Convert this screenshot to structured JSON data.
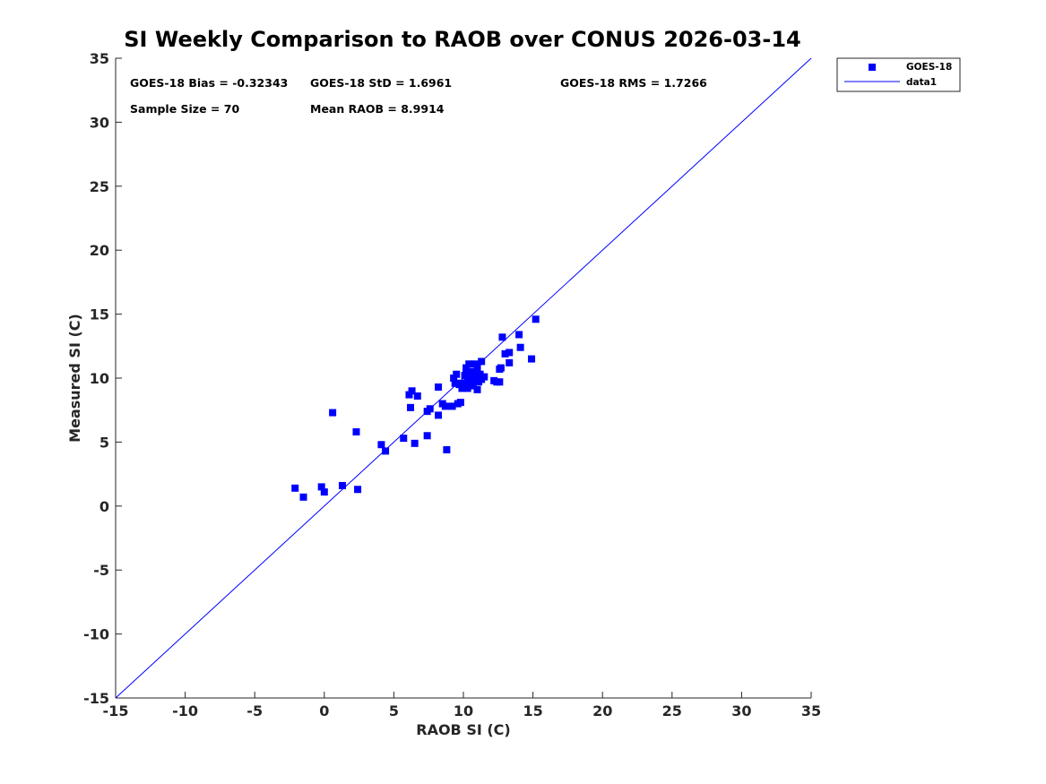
{
  "chart_data": {
    "type": "scatter",
    "title": "SI Weekly Comparison to RAOB over CONUS 2026-03-14",
    "xlabel": "RAOB SI (C)",
    "ylabel": "Measured SI (C)",
    "xlim": [
      -15,
      35
    ],
    "ylim": [
      -15,
      35
    ],
    "xticks": [
      -15,
      -10,
      -5,
      0,
      5,
      10,
      15,
      20,
      25,
      30,
      35
    ],
    "yticks": [
      -15,
      -10,
      -5,
      0,
      5,
      10,
      15,
      20,
      25,
      30,
      35
    ],
    "grid": false,
    "legend_position": "outside top-right",
    "stats": {
      "bias": "GOES-18 Bias = -0.32343",
      "std": "GOES-18 StD = 1.6961",
      "rms": "GOES-18 RMS = 1.7266",
      "sample_size": "Sample Size = 70",
      "mean_raob": "Mean RAOB = 8.9914"
    },
    "series": [
      {
        "name": "GOES-18",
        "kind": "scatter",
        "marker": "square",
        "color": "#0000ff",
        "points": [
          [
            -2.1,
            1.4
          ],
          [
            -1.5,
            0.7
          ],
          [
            -0.2,
            1.5
          ],
          [
            0.0,
            1.1
          ],
          [
            0.6,
            7.3
          ],
          [
            1.3,
            1.6
          ],
          [
            2.3,
            5.8
          ],
          [
            2.4,
            1.3
          ],
          [
            4.1,
            4.8
          ],
          [
            4.4,
            4.3
          ],
          [
            5.7,
            5.3
          ],
          [
            6.1,
            8.7
          ],
          [
            6.2,
            7.7
          ],
          [
            6.3,
            9.0
          ],
          [
            6.5,
            4.9
          ],
          [
            6.7,
            8.6
          ],
          [
            7.4,
            7.4
          ],
          [
            7.4,
            5.5
          ],
          [
            7.6,
            7.6
          ],
          [
            8.2,
            7.1
          ],
          [
            8.2,
            9.3
          ],
          [
            8.5,
            8.0
          ],
          [
            8.7,
            7.8
          ],
          [
            8.8,
            4.4
          ],
          [
            9.2,
            7.8
          ],
          [
            9.3,
            10.0
          ],
          [
            9.5,
            10.3
          ],
          [
            9.6,
            8.0
          ],
          [
            9.7,
            9.5
          ],
          [
            9.8,
            8.1
          ],
          [
            9.9,
            9.2
          ],
          [
            10.1,
            9.5
          ],
          [
            10.1,
            10.2
          ],
          [
            10.2,
            10.8
          ],
          [
            10.3,
            9.2
          ],
          [
            10.3,
            9.8
          ],
          [
            10.4,
            11.1
          ],
          [
            10.5,
            10.0
          ],
          [
            10.5,
            9.6
          ],
          [
            10.6,
            10.5
          ],
          [
            10.7,
            9.4
          ],
          [
            10.8,
            11.1
          ],
          [
            10.8,
            9.8
          ],
          [
            10.9,
            10.1
          ],
          [
            11.0,
            10.6
          ],
          [
            11.0,
            9.1
          ],
          [
            11.0,
            11.0
          ],
          [
            11.1,
            9.7
          ],
          [
            11.2,
            10.3
          ],
          [
            11.3,
            11.3
          ],
          [
            11.3,
            9.9
          ],
          [
            11.5,
            10.1
          ],
          [
            12.2,
            9.8
          ],
          [
            12.6,
            9.7
          ],
          [
            12.6,
            10.7
          ],
          [
            12.7,
            10.8
          ],
          [
            12.8,
            13.2
          ],
          [
            13.0,
            11.9
          ],
          [
            13.3,
            12.0
          ],
          [
            13.3,
            11.2
          ],
          [
            14.0,
            13.4
          ],
          [
            14.1,
            12.4
          ],
          [
            14.9,
            11.5
          ],
          [
            15.2,
            14.6
          ],
          [
            9.9,
            9.6
          ],
          [
            10.6,
            10.4
          ],
          [
            11.1,
            10.2
          ],
          [
            12.4,
            9.7
          ],
          [
            9.4,
            9.6
          ],
          [
            10.2,
            10.5
          ]
        ]
      },
      {
        "name": "data1",
        "kind": "line",
        "color": "#0000ff",
        "x": [
          -15,
          35
        ],
        "y": [
          -15,
          35
        ]
      }
    ]
  }
}
